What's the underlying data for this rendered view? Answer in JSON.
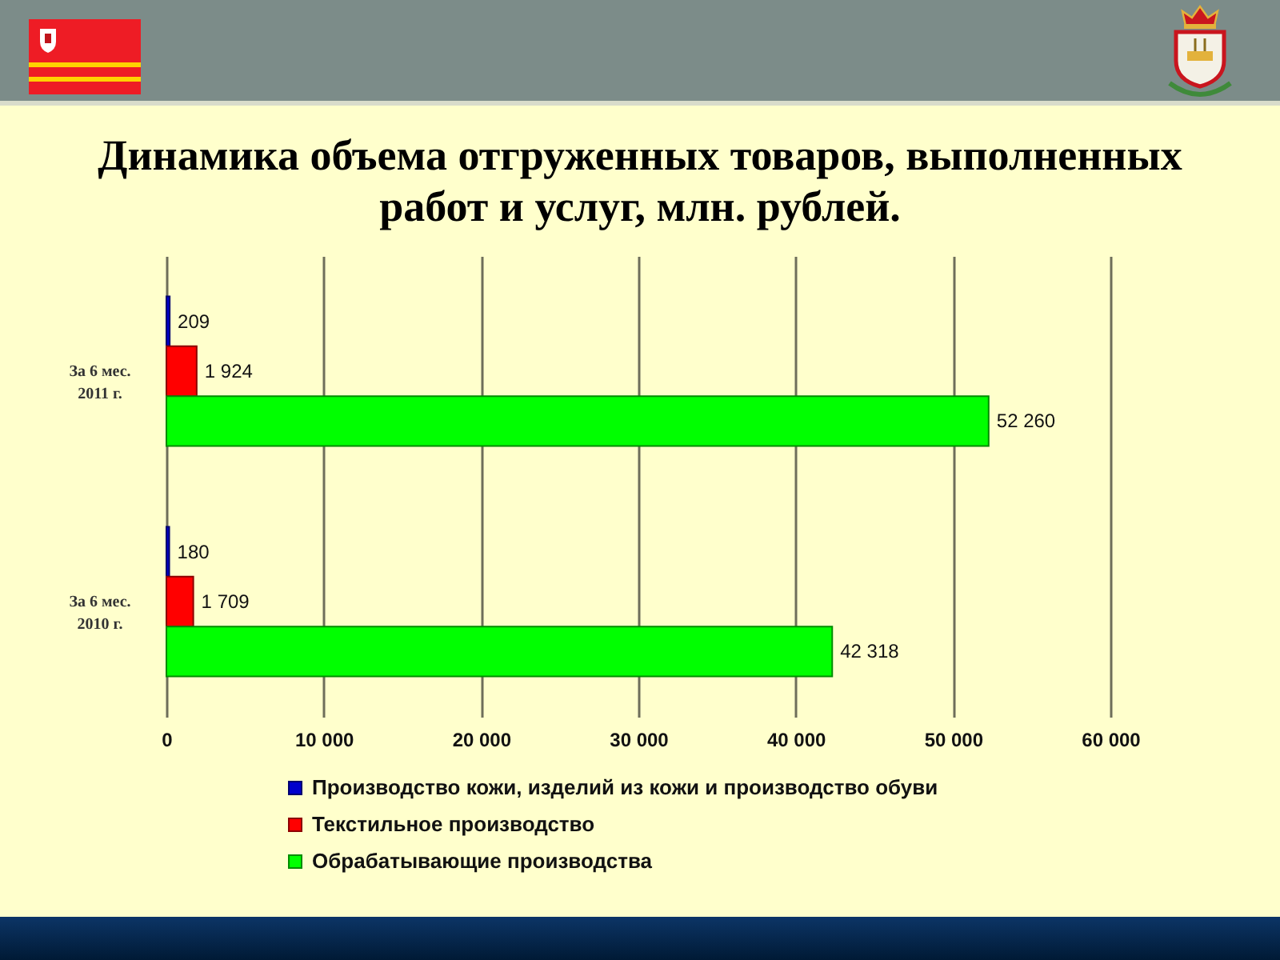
{
  "chart_data": {
    "type": "bar",
    "orientation": "horizontal",
    "title": "Динамика объема отгруженных товаров, выполненных работ и услуг, млн. рублей.",
    "categories": [
      "За 6 мес. 2011 г.",
      "За 6 мес. 2010 г."
    ],
    "series": [
      {
        "name": "Производство кожи, изделий из кожи и производство обуви",
        "color": "#0000cc",
        "values": [
          209,
          180
        ],
        "value_labels": [
          "209",
          "180"
        ]
      },
      {
        "name": "Текстильное производство",
        "color": "#ff0000",
        "values": [
          1924,
          1709
        ],
        "value_labels": [
          "1 924",
          "1 709"
        ]
      },
      {
        "name": "Обрабатывающие производства",
        "color": "#00ff00",
        "values": [
          52260,
          42318
        ],
        "value_labels": [
          "52 260",
          "42 318"
        ]
      }
    ],
    "xlim": [
      0,
      60000
    ],
    "xticks": [
      0,
      {
        "value": 10000,
        "label": "10 000"
      },
      {
        "value": 20000,
        "label": "20 000"
      },
      {
        "value": 30000,
        "label": "30 000"
      },
      {
        "value": 40000,
        "label": "40 000"
      },
      {
        "value": 50000,
        "label": "50 000"
      },
      {
        "value": 60000,
        "label": "60 000"
      }
    ],
    "grid": "x",
    "legend": "bottom"
  }
}
